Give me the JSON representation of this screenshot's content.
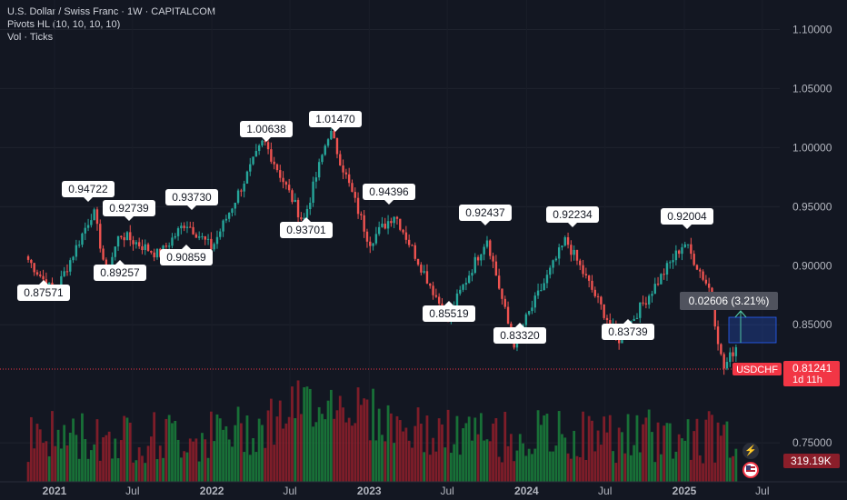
{
  "legend": {
    "title": "U.S. Dollar / Swiss Franc · 1W · CAPITALCOM",
    "indicator": "Pivots HL (10, 10, 10, 10)",
    "volume": "Vol · Ticks"
  },
  "currency_button": "CHF",
  "colors": {
    "up": "#26a69a",
    "down": "#ef5350",
    "vol_up": "#1a7a3a",
    "vol_down": "#8b1e2a",
    "background": "#131722",
    "accent": "#f23645"
  },
  "chart_data": {
    "type": "candlestick",
    "symbol": "USDCHF",
    "timeframe": "1W",
    "y_axis": {
      "ticks": [
        "1.10000",
        "1.05000",
        "1.00000",
        "0.95000",
        "0.90000",
        "0.85000",
        "0.75000"
      ],
      "ylim": [
        0.717,
        1.125
      ]
    },
    "x_axis": {
      "ticks": [
        "2021",
        "Jul",
        "2022",
        "Jul",
        "2023",
        "Jul",
        "2024",
        "Jul",
        "2025",
        "Jul"
      ]
    },
    "price_path": [
      {
        "date": "2020-11",
        "price": 0.905
      },
      {
        "date": "2021-01",
        "price": 0.876
      },
      {
        "date": "2021-04",
        "price": 0.947
      },
      {
        "date": "2021-05",
        "price": 0.893
      },
      {
        "date": "2021-06",
        "price": 0.927
      },
      {
        "date": "2021-09",
        "price": 0.909
      },
      {
        "date": "2021-11",
        "price": 0.937
      },
      {
        "date": "2022-01",
        "price": 0.915
      },
      {
        "date": "2022-05",
        "price": 1.006
      },
      {
        "date": "2022-08",
        "price": 0.937
      },
      {
        "date": "2022-10",
        "price": 1.015
      },
      {
        "date": "2023-01",
        "price": 0.92
      },
      {
        "date": "2023-03",
        "price": 0.944
      },
      {
        "date": "2023-07",
        "price": 0.855
      },
      {
        "date": "2023-10",
        "price": 0.924
      },
      {
        "date": "2023-12",
        "price": 0.833
      },
      {
        "date": "2024-04",
        "price": 0.922
      },
      {
        "date": "2024-08",
        "price": 0.837
      },
      {
        "date": "2025-01",
        "price": 0.92
      },
      {
        "date": "2025-03",
        "price": 0.88
      },
      {
        "date": "2025-04",
        "price": 0.812
      },
      {
        "date": "2025-05",
        "price": 0.832
      }
    ],
    "pivots": [
      {
        "label": "0.87571",
        "value": 0.87571,
        "type": "low"
      },
      {
        "label": "0.94722",
        "value": 0.94722,
        "type": "high"
      },
      {
        "label": "0.89257",
        "value": 0.89257,
        "type": "low"
      },
      {
        "label": "0.92739",
        "value": 0.92739,
        "type": "high"
      },
      {
        "label": "0.90859",
        "value": 0.90859,
        "type": "low"
      },
      {
        "label": "0.93730",
        "value": 0.9373,
        "type": "high"
      },
      {
        "label": "1.00638",
        "value": 1.00638,
        "type": "high"
      },
      {
        "label": "0.93701",
        "value": 0.93701,
        "type": "low"
      },
      {
        "label": "1.01470",
        "value": 1.0147,
        "type": "high"
      },
      {
        "label": "0.94396",
        "value": 0.94396,
        "type": "high"
      },
      {
        "label": "0.85519",
        "value": 0.85519,
        "type": "low"
      },
      {
        "label": "0.92437",
        "value": 0.92437,
        "type": "high"
      },
      {
        "label": "0.83320",
        "value": 0.8332,
        "type": "low"
      },
      {
        "label": "0.92234",
        "value": 0.92234,
        "type": "high"
      },
      {
        "label": "0.83739",
        "value": 0.83739,
        "type": "low"
      },
      {
        "label": "0.92004",
        "value": 0.92004,
        "type": "high"
      }
    ],
    "measure_label": "0.02606 (3.21%)",
    "last_price": {
      "symbol": "USDCHF",
      "value": "0.81241",
      "countdown": "1d 11h"
    },
    "volume_label": "319.19K"
  }
}
